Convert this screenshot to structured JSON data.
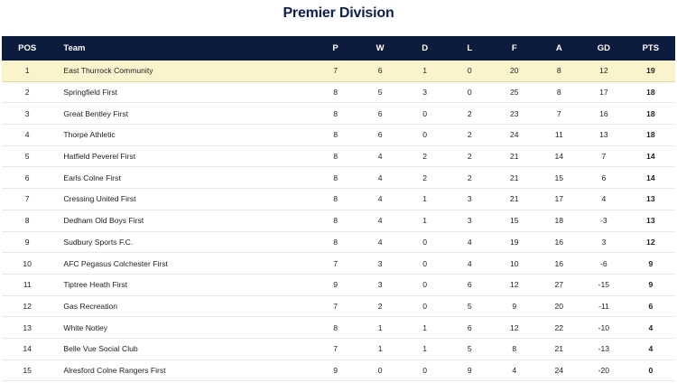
{
  "title": "Premier Division",
  "headers": {
    "pos": "POS",
    "team": "Team",
    "p": "P",
    "w": "W",
    "d": "D",
    "l": "L",
    "f": "F",
    "a": "A",
    "gd": "GD",
    "pts": "PTS"
  },
  "rows": [
    {
      "pos": "1",
      "team": "East Thurrock Community",
      "p": "7",
      "w": "6",
      "d": "1",
      "l": "0",
      "f": "20",
      "a": "8",
      "gd": "12",
      "pts": "19"
    },
    {
      "pos": "2",
      "team": "Springfield First",
      "p": "8",
      "w": "5",
      "d": "3",
      "l": "0",
      "f": "25",
      "a": "8",
      "gd": "17",
      "pts": "18"
    },
    {
      "pos": "3",
      "team": "Great Bentley First",
      "p": "8",
      "w": "6",
      "d": "0",
      "l": "2",
      "f": "23",
      "a": "7",
      "gd": "16",
      "pts": "18"
    },
    {
      "pos": "4",
      "team": "Thorpe Athletic",
      "p": "8",
      "w": "6",
      "d": "0",
      "l": "2",
      "f": "24",
      "a": "11",
      "gd": "13",
      "pts": "18"
    },
    {
      "pos": "5",
      "team": "Hatfield Peverel First",
      "p": "8",
      "w": "4",
      "d": "2",
      "l": "2",
      "f": "21",
      "a": "14",
      "gd": "7",
      "pts": "14"
    },
    {
      "pos": "6",
      "team": "Earls Colne First",
      "p": "8",
      "w": "4",
      "d": "2",
      "l": "2",
      "f": "21",
      "a": "15",
      "gd": "6",
      "pts": "14"
    },
    {
      "pos": "7",
      "team": "Cressing United First",
      "p": "8",
      "w": "4",
      "d": "1",
      "l": "3",
      "f": "21",
      "a": "17",
      "gd": "4",
      "pts": "13"
    },
    {
      "pos": "8",
      "team": "Dedham Old Boys First",
      "p": "8",
      "w": "4",
      "d": "1",
      "l": "3",
      "f": "15",
      "a": "18",
      "gd": "-3",
      "pts": "13"
    },
    {
      "pos": "9",
      "team": "Sudbury Sports F.C.",
      "p": "8",
      "w": "4",
      "d": "0",
      "l": "4",
      "f": "19",
      "a": "16",
      "gd": "3",
      "pts": "12"
    },
    {
      "pos": "10",
      "team": "AFC Pegasus Colchester First",
      "p": "7",
      "w": "3",
      "d": "0",
      "l": "4",
      "f": "10",
      "a": "16",
      "gd": "-6",
      "pts": "9"
    },
    {
      "pos": "11",
      "team": "Tiptree Heath First",
      "p": "9",
      "w": "3",
      "d": "0",
      "l": "6",
      "f": "12",
      "a": "27",
      "gd": "-15",
      "pts": "9"
    },
    {
      "pos": "12",
      "team": "Gas Recreation",
      "p": "7",
      "w": "2",
      "d": "0",
      "l": "5",
      "f": "9",
      "a": "20",
      "gd": "-11",
      "pts": "6"
    },
    {
      "pos": "13",
      "team": "White Notley",
      "p": "8",
      "w": "1",
      "d": "1",
      "l": "6",
      "f": "12",
      "a": "22",
      "gd": "-10",
      "pts": "4"
    },
    {
      "pos": "14",
      "team": "Belle Vue Social Club",
      "p": "7",
      "w": "1",
      "d": "1",
      "l": "5",
      "f": "8",
      "a": "21",
      "gd": "-13",
      "pts": "4"
    },
    {
      "pos": "15",
      "team": "Alresford Colne Rangers First",
      "p": "9",
      "w": "0",
      "d": "0",
      "l": "9",
      "f": "4",
      "a": "24",
      "gd": "-20",
      "pts": "0"
    }
  ],
  "colors": {
    "header_bg": "#0d1b3e",
    "leader_bg": "#fbf3cc",
    "title": "#0b1f4a"
  }
}
